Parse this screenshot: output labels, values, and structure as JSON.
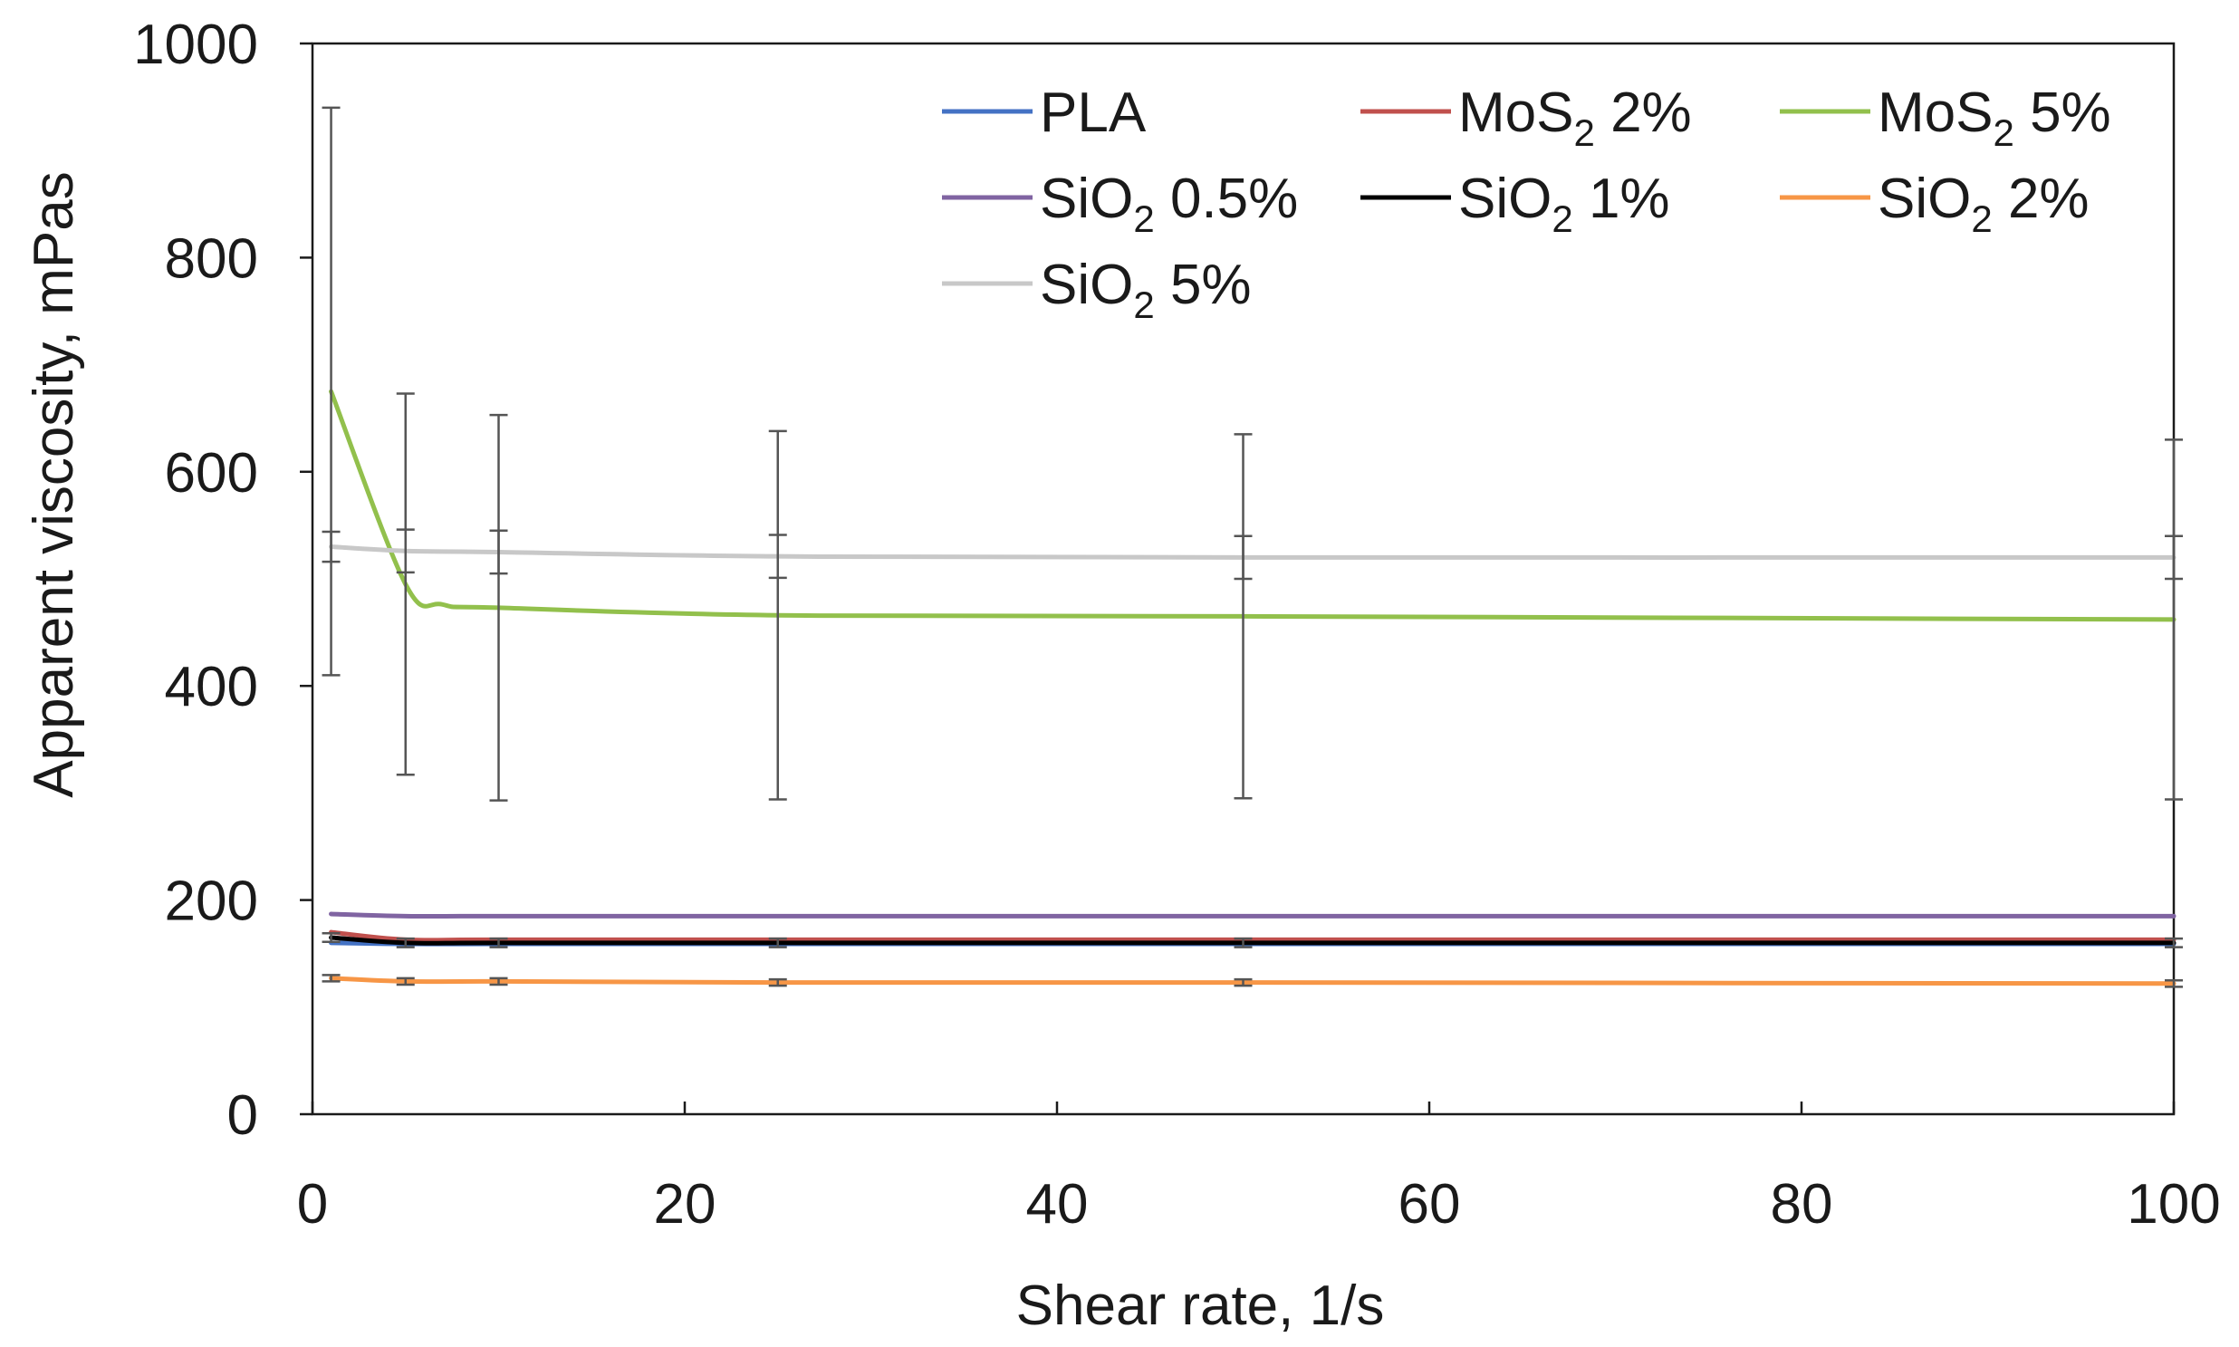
{
  "chart_data": {
    "type": "line",
    "title": "",
    "xlabel": "Shear rate, 1/s",
    "ylabel": "Apparent viscosity, mPas",
    "xlim": [
      0,
      100
    ],
    "ylim": [
      0,
      1000
    ],
    "x_ticks": [
      0,
      20,
      40,
      60,
      80,
      100
    ],
    "y_ticks": [
      0,
      200,
      400,
      600,
      800,
      1000
    ],
    "grid": false,
    "legend_position": "top-right",
    "series": [
      {
        "name": "PLA",
        "base": "PLA",
        "sub": "",
        "rest": "",
        "color": "#4472C4",
        "x": [
          1,
          5,
          10,
          25,
          50,
          100
        ],
        "y": [
          160,
          159,
          159,
          159,
          159,
          159
        ],
        "err": [
          0,
          0,
          0,
          0,
          0,
          0
        ]
      },
      {
        "name": "MoS2 2%",
        "base": "MoS",
        "sub": "2",
        "rest": " 2%",
        "color": "#C0504D",
        "x": [
          1,
          5,
          10,
          25,
          50,
          100
        ],
        "y": [
          170,
          163,
          163,
          163,
          163,
          163
        ],
        "err": [
          0,
          0,
          0,
          0,
          0,
          0
        ]
      },
      {
        "name": "MoS2 5%",
        "base": "MoS",
        "sub": "2",
        "rest": " 5%",
        "color": "#92C04C",
        "x": [
          1,
          5,
          7,
          10,
          25,
          50,
          100
        ],
        "y": [
          675,
          495,
          476,
          473,
          466,
          465,
          462
        ],
        "err": [
          265,
          178,
          0,
          180,
          172,
          170,
          168
        ]
      },
      {
        "name": "SiO2 0.5%",
        "base": "SiO",
        "sub": "2",
        "rest": " 0.5%",
        "color": "#8064A2",
        "x": [
          1,
          5,
          10,
          25,
          50,
          100
        ],
        "y": [
          187,
          185,
          185,
          185,
          185,
          185
        ],
        "err": [
          0,
          0,
          0,
          0,
          0,
          0
        ]
      },
      {
        "name": "SiO2 1%",
        "base": "SiO",
        "sub": "2",
        "rest": " 1%",
        "color": "#000000",
        "x": [
          1,
          5,
          10,
          25,
          50,
          100
        ],
        "y": [
          165,
          160,
          160,
          160,
          160,
          160
        ],
        "err": [
          4,
          4,
          4,
          4,
          4,
          4
        ]
      },
      {
        "name": "SiO2 2%",
        "base": "SiO",
        "sub": "2",
        "rest": " 2%",
        "color": "#F79646",
        "x": [
          1,
          5,
          10,
          25,
          50,
          100
        ],
        "y": [
          127,
          124,
          124,
          123,
          123,
          122
        ],
        "err": [
          3,
          3,
          3,
          3,
          3,
          3
        ]
      },
      {
        "name": "SiO2 5%",
        "base": "SiO",
        "sub": "2",
        "rest": " 5%",
        "color": "#C8C8C8",
        "x": [
          1,
          5,
          10,
          25,
          50,
          100
        ],
        "y": [
          530,
          526,
          525,
          521,
          520,
          520
        ],
        "err": [
          14,
          20,
          20,
          20,
          20,
          20
        ]
      }
    ]
  }
}
